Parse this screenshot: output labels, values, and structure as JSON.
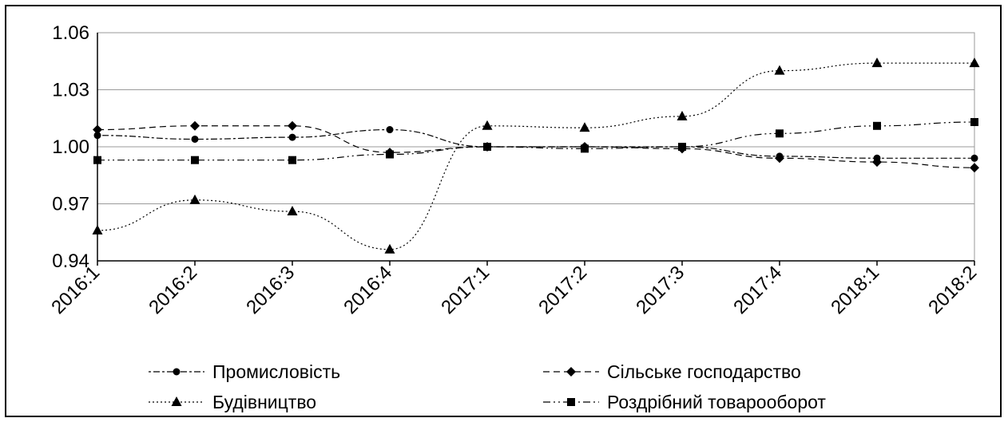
{
  "chart_data": {
    "type": "line",
    "title": "",
    "xlabel": "",
    "ylabel": "",
    "ylim": [
      0.94,
      1.06
    ],
    "yticks": [
      "0.94",
      "0.97",
      "1.00",
      "1.03",
      "1.06"
    ],
    "grid": true,
    "legend_position": "bottom",
    "categories": [
      "2016:1",
      "2016:2",
      "2016:3",
      "2016:4",
      "2017:1",
      "2017:2",
      "2017:3",
      "2017:4",
      "2018:1",
      "2018:2"
    ],
    "series": [
      {
        "name": "Промисловість",
        "marker": "circle",
        "dash": "dot-dash",
        "color": "#000000",
        "values": [
          1.006,
          1.004,
          1.005,
          1.009,
          1.0,
          1.0,
          1.0,
          0.995,
          0.994,
          0.994
        ]
      },
      {
        "name": "Сільське господарство",
        "marker": "diamond",
        "dash": "dash",
        "color": "#000000",
        "values": [
          1.009,
          1.011,
          1.011,
          0.997,
          1.0,
          1.0,
          0.999,
          0.994,
          0.992,
          0.989
        ]
      },
      {
        "name": "Будівництво",
        "marker": "triangle",
        "dash": "dot",
        "color": "#000000",
        "values": [
          0.956,
          0.972,
          0.966,
          0.946,
          1.011,
          1.01,
          1.016,
          1.04,
          1.044,
          1.044
        ]
      },
      {
        "name": "Роздрібний товарооборот",
        "marker": "square",
        "dash": "dash-dot-dot",
        "color": "#000000",
        "values": [
          0.993,
          0.993,
          0.993,
          0.996,
          1.0,
          0.999,
          1.0,
          1.007,
          1.011,
          1.013
        ]
      }
    ]
  }
}
